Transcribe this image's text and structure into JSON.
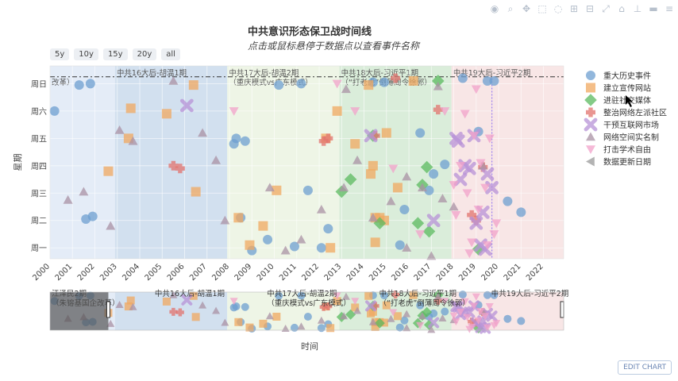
{
  "toolbar": {
    "icons": [
      "camera-icon",
      "zoom-icon",
      "pan-icon",
      "box-select-icon",
      "lasso-icon",
      "zoom-in-icon",
      "zoom-out-icon",
      "autoscale-icon",
      "reset-icon",
      "spike-icon",
      "hover-closest-icon",
      "hover-compare-icon"
    ]
  },
  "range_buttons": [
    "5y",
    "10y",
    "15y",
    "20y",
    "all"
  ],
  "edit_chart": "EDIT CHART",
  "chart_data": {
    "type": "scatter",
    "title": "中共意识形态保卫战时间线",
    "subtitle": "点击或鼠标悬停于数据点以查看事件名称",
    "xlabel": "时间",
    "ylabel": "星期",
    "xlim": [
      2000.0,
      2022.9
    ],
    "ylim": [
      0.6,
      7.65
    ],
    "x_ticks": [
      2000,
      2001,
      2002,
      2003,
      2004,
      2005,
      2006,
      2007,
      2008,
      2009,
      2010,
      2011,
      2012,
      2013,
      2014,
      2015,
      2016,
      2017,
      2018,
      2019,
      2020,
      2021,
      2022
    ],
    "y_ticks": [
      {
        "v": 1,
        "label": "周一"
      },
      {
        "v": 2,
        "label": "周二"
      },
      {
        "v": 3,
        "label": "周三"
      },
      {
        "v": 4,
        "label": "周四"
      },
      {
        "v": 5,
        "label": "周五"
      },
      {
        "v": 6,
        "label": "周六"
      },
      {
        "v": 7,
        "label": "周日"
      }
    ],
    "periods": [
      {
        "start": 2000.0,
        "end": 2002.9,
        "color": "#dbe6f4",
        "label": [
          "江泽民2期",
          "（朱镕基国企改革）"
        ],
        "mini_only": true
      },
      {
        "start": 2002.9,
        "end": 2007.9,
        "color": "#c3d6ea",
        "label": [
          "中共16大后-胡温1期"
        ]
      },
      {
        "start": 2007.9,
        "end": 2012.9,
        "color": "#e8f2dd",
        "label": [
          "中共17大后-胡温2期",
          "（重庆模式vs广东模式）"
        ]
      },
      {
        "start": 2012.9,
        "end": 2017.9,
        "color": "#cde7cd",
        "label": [
          "中共18大后-习近平1期",
          "（“打老虎”倒薄周令徐郭）"
        ]
      },
      {
        "start": 2017.9,
        "end": 2022.9,
        "color": "#f6dede",
        "label": [
          "中共19大后-习近平2期"
        ]
      }
    ],
    "main_first_label": "改革）",
    "dashed_line_y": 7.25,
    "vline_x": 2019.7,
    "series": [
      {
        "name": "重大历史事件",
        "symbol": "circle",
        "color": "#6e9fd0",
        "x": [
          2000.2,
          2001.3,
          2001.8,
          2001.6,
          2001.9,
          2008.3,
          2008.7,
          2008.5,
          2009.0,
          2009.7,
          2011.5,
          2011.2,
          2010.2,
          2012.4,
          2014.4,
          2014.9,
          2015.8,
          2016.5,
          2016.9,
          2017.1,
          2015.6,
          2018.4,
          2019.5,
          2019.8,
          2020.4,
          2021.0,
          2017.6,
          2008.2,
          2010.9,
          2019.1,
          2012.1
        ],
        "y": [
          6.0,
          6.95,
          7.0,
          2.05,
          2.15,
          5.0,
          4.9,
          2.1,
          0.9,
          1.3,
          3.1,
          7.0,
          6.95,
          1.7,
          7.05,
          7.05,
          2.4,
          5.2,
          3.1,
          3.7,
          1.1,
          7.2,
          7.1,
          7.1,
          2.7,
          2.3,
          4.05,
          4.8,
          1.05,
          5.25,
          1.0
        ]
      },
      {
        "name": "建立宣传网站",
        "symbol": "square",
        "color": "#f0a860",
        "x": [
          2002.6,
          2003.5,
          2003.6,
          2005.2,
          2006.5,
          2006.4,
          2008.4,
          2009.5,
          2010.1,
          2012.5,
          2012.8,
          2014.2,
          2014.3,
          2014.7,
          2014.9,
          2015.5,
          2016.2,
          2014.5,
          2014.5,
          2013.6,
          2008.9,
          2012.3,
          2014.4,
          2015.0
        ],
        "y": [
          3.8,
          5.0,
          6.1,
          5.9,
          3.05,
          6.95,
          2.1,
          1.8,
          3.1,
          1.0,
          6.0,
          6.95,
          3.7,
          2.1,
          2.0,
          3.2,
          7.1,
          2.1,
          1.2,
          4.8,
          1.1,
          5.0,
          4.0,
          5.2
        ]
      },
      {
        "name": "进驻社交媒体",
        "symbol": "diamond",
        "color": "#5bb95f",
        "x": [
          2016.4,
          2016.9,
          2017.3,
          2013.0,
          2014.4,
          2014.7,
          2016.6,
          2019.1,
          2013.4,
          2016.8
        ],
        "y": [
          1.9,
          1.6,
          7.1,
          3.05,
          5.1,
          1.9,
          3.3,
          0.95,
          3.5,
          3.95
        ]
      },
      {
        "name": "整治网络左派社区",
        "symbol": "cross",
        "color": "#e2736d",
        "x": [
          2005.5,
          2005.8,
          2012.2,
          2012.4,
          2014.5,
          2017.3,
          2018.8,
          2019.0,
          2019.3,
          2015.4
        ],
        "y": [
          4.0,
          3.9,
          4.9,
          5.0,
          5.1,
          6.05,
          2.2,
          2.0,
          3.95,
          7.2
        ]
      },
      {
        "name": "干预互联网市场",
        "symbol": "x",
        "color": "#b893d8",
        "x": [
          2006.1,
          2018.2,
          2018.5,
          2018.7,
          2019.0,
          2019.2,
          2018.3,
          2019.5,
          2019.3,
          2017.1,
          2018.9,
          2019.7,
          2019.4,
          2018.1,
          2014.3
        ],
        "y": [
          6.2,
          4.9,
          4.0,
          3.9,
          1.9,
          1.1,
          3.5,
          3.7,
          2.3,
          2.0,
          5.1,
          3.2,
          0.95,
          5.0,
          5.1
        ]
      },
      {
        "name": "网络空间实名制",
        "symbol": "triangle-up",
        "color": "#a992a4",
        "x": [
          2000.8,
          2001.5,
          2002.7,
          2003.1,
          2003.7,
          2005.5,
          2006.8,
          2007.8,
          2007.4,
          2010.5,
          2012.1,
          2013.2,
          2013.7,
          2014.4,
          2015.2,
          2015.9,
          2016.6,
          2017.3,
          2017.5,
          2018.0,
          2019.3,
          2013.1,
          2017.0,
          2011.2,
          2015.9,
          2009.8
        ],
        "y": [
          2.75,
          3.05,
          1.8,
          5.3,
          4.9,
          7.1,
          5.2,
          2.0,
          4.2,
          0.9,
          2.4,
          6.8,
          4.2,
          2.1,
          2.7,
          1.0,
          3.2,
          6.9,
          2.8,
          2.5,
          4.0,
          3.2,
          0.7,
          1.3,
          3.6,
          3.2
        ]
      },
      {
        "name": "打击学术自由",
        "symbol": "triangle-down",
        "color": "#f2a2c9",
        "x": [
          2008.2,
          2012.8,
          2013.6,
          2015.3,
          2016.5,
          2017.6,
          2018.0,
          2018.3,
          2018.6,
          2018.8,
          2019.2,
          2019.4,
          2019.0,
          2018.5,
          2018.9,
          2019.6,
          2019.1,
          2018.7,
          2019.9,
          2019.5,
          2018.1,
          2019.8
        ],
        "y": [
          6.0,
          7.0,
          6.0,
          3.9,
          1.5,
          6.0,
          3.3,
          4.0,
          3.0,
          1.2,
          4.1,
          3.2,
          6.8,
          5.9,
          5.1,
          5.0,
          2.4,
          0.8,
          1.9,
          1.1,
          2.2,
          1.5
        ]
      },
      {
        "name": "数据更新日期",
        "symbol": "triangle-left",
        "color": "#999999",
        "x": [],
        "y": []
      }
    ]
  }
}
